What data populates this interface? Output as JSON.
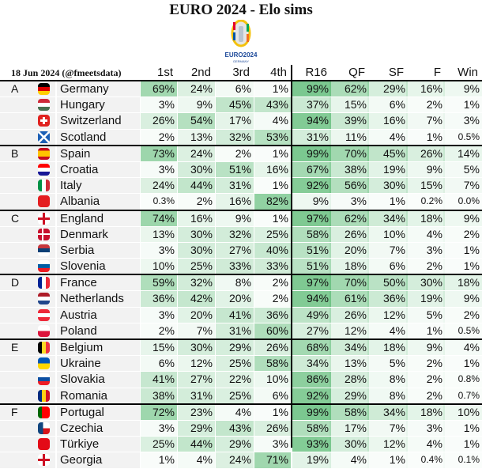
{
  "title": "EURO 2024 - Elo sims",
  "logo_text": "EURO2024",
  "logo_subtext": "GERMANY",
  "subtitle": "18 Jun 2024 (@fmeetsdata)",
  "columns": [
    "1st",
    "2nd",
    "3rd",
    "4th",
    "R16",
    "QF",
    "SF",
    "F",
    "Win"
  ],
  "colors": {
    "heat_max": "#63be7b",
    "name_bg": "#f2f2f2"
  },
  "groups": [
    {
      "letter": "A",
      "teams": [
        {
          "name": "Germany",
          "flag": [
            "#000",
            "#dd0000",
            "#ffce00"
          ],
          "dir": "h",
          "values": [
            "69%",
            "24%",
            "6%",
            "1%",
            "99%",
            "62%",
            "29%",
            "16%",
            "9%"
          ]
        },
        {
          "name": "Hungary",
          "flag": [
            "#ce2939",
            "#fff",
            "#477050"
          ],
          "dir": "h",
          "values": [
            "3%",
            "9%",
            "45%",
            "43%",
            "37%",
            "15%",
            "6%",
            "2%",
            "1%"
          ]
        },
        {
          "name": "Switzerland",
          "flag": [
            "#e0221f"
          ],
          "dir": "cross-white",
          "values": [
            "26%",
            "54%",
            "17%",
            "4%",
            "94%",
            "39%",
            "16%",
            "7%",
            "3%"
          ]
        },
        {
          "name": "Scotland",
          "flag": [
            "#1b5fb5"
          ],
          "dir": "saltire",
          "values": [
            "2%",
            "13%",
            "32%",
            "53%",
            "31%",
            "11%",
            "4%",
            "1%",
            "0.5%"
          ]
        }
      ]
    },
    {
      "letter": "B",
      "teams": [
        {
          "name": "Spain",
          "flag": [
            "#c60b1e",
            "#ffc400",
            "#ffc400",
            "#c60b1e"
          ],
          "dir": "h",
          "values": [
            "73%",
            "24%",
            "2%",
            "1%",
            "99%",
            "70%",
            "45%",
            "26%",
            "14%"
          ]
        },
        {
          "name": "Croatia",
          "flag": [
            "#ff0000",
            "#fff",
            "#171796"
          ],
          "dir": "h",
          "values": [
            "3%",
            "30%",
            "51%",
            "16%",
            "67%",
            "38%",
            "19%",
            "9%",
            "5%"
          ]
        },
        {
          "name": "Italy",
          "flag": [
            "#009246",
            "#fff",
            "#ce2b37"
          ],
          "dir": "v",
          "values": [
            "24%",
            "44%",
            "31%",
            "1%",
            "92%",
            "56%",
            "30%",
            "15%",
            "7%"
          ]
        },
        {
          "name": "Albania",
          "flag": [
            "#e41e20"
          ],
          "dir": "h",
          "values": [
            "0.3%",
            "2%",
            "16%",
            "82%",
            "9%",
            "3%",
            "1%",
            "0.2%",
            "0.0%"
          ]
        }
      ]
    },
    {
      "letter": "C",
      "teams": [
        {
          "name": "England",
          "flag": [
            "#fff"
          ],
          "dir": "cross-red",
          "values": [
            "74%",
            "16%",
            "9%",
            "1%",
            "97%",
            "62%",
            "34%",
            "18%",
            "9%"
          ]
        },
        {
          "name": "Denmark",
          "flag": [
            "#c8102e"
          ],
          "dir": "nordic",
          "values": [
            "13%",
            "30%",
            "32%",
            "25%",
            "58%",
            "26%",
            "10%",
            "4%",
            "2%"
          ]
        },
        {
          "name": "Serbia",
          "flag": [
            "#c6363c",
            "#0c4076",
            "#fff"
          ],
          "dir": "h",
          "values": [
            "3%",
            "30%",
            "27%",
            "40%",
            "51%",
            "20%",
            "7%",
            "3%",
            "1%"
          ]
        },
        {
          "name": "Slovenia",
          "flag": [
            "#fff",
            "#005da4",
            "#ed1c24"
          ],
          "dir": "h",
          "values": [
            "10%",
            "25%",
            "33%",
            "33%",
            "51%",
            "18%",
            "6%",
            "2%",
            "1%"
          ]
        }
      ]
    },
    {
      "letter": "D",
      "teams": [
        {
          "name": "France",
          "flag": [
            "#002395",
            "#fff",
            "#ed2939"
          ],
          "dir": "v",
          "values": [
            "59%",
            "32%",
            "8%",
            "2%",
            "97%",
            "70%",
            "50%",
            "30%",
            "18%"
          ]
        },
        {
          "name": "Netherlands",
          "flag": [
            "#ae1c28",
            "#fff",
            "#21468b"
          ],
          "dir": "h",
          "values": [
            "36%",
            "42%",
            "20%",
            "2%",
            "94%",
            "61%",
            "36%",
            "19%",
            "9%"
          ]
        },
        {
          "name": "Austria",
          "flag": [
            "#ed2939",
            "#fff",
            "#ed2939"
          ],
          "dir": "h",
          "values": [
            "3%",
            "20%",
            "41%",
            "36%",
            "49%",
            "26%",
            "12%",
            "5%",
            "2%"
          ]
        },
        {
          "name": "Poland",
          "flag": [
            "#fff",
            "#dc143c"
          ],
          "dir": "h",
          "values": [
            "2%",
            "7%",
            "31%",
            "60%",
            "27%",
            "12%",
            "4%",
            "1%",
            "0.5%"
          ]
        }
      ]
    },
    {
      "letter": "E",
      "teams": [
        {
          "name": "Belgium",
          "flag": [
            "#000",
            "#fdda24",
            "#ef3340"
          ],
          "dir": "v",
          "values": [
            "15%",
            "30%",
            "29%",
            "26%",
            "68%",
            "34%",
            "18%",
            "9%",
            "4%"
          ]
        },
        {
          "name": "Ukraine",
          "flag": [
            "#0057b7",
            "#ffd700"
          ],
          "dir": "h",
          "values": [
            "6%",
            "12%",
            "25%",
            "58%",
            "34%",
            "13%",
            "5%",
            "2%",
            "1%"
          ]
        },
        {
          "name": "Slovakia",
          "flag": [
            "#fff",
            "#0b4ea2",
            "#ee1c25"
          ],
          "dir": "h",
          "values": [
            "41%",
            "27%",
            "22%",
            "10%",
            "86%",
            "28%",
            "8%",
            "2%",
            "0.8%"
          ]
        },
        {
          "name": "Romania",
          "flag": [
            "#002b7f",
            "#fcd116",
            "#ce1126"
          ],
          "dir": "v",
          "values": [
            "38%",
            "31%",
            "25%",
            "6%",
            "92%",
            "29%",
            "8%",
            "2%",
            "0.7%"
          ]
        }
      ]
    },
    {
      "letter": "F",
      "teams": [
        {
          "name": "Portugal",
          "flag": [
            "#006600",
            "#ff0000",
            "#ff0000"
          ],
          "dir": "v",
          "values": [
            "72%",
            "23%",
            "4%",
            "1%",
            "99%",
            "58%",
            "34%",
            "18%",
            "10%"
          ]
        },
        {
          "name": "Czechia",
          "flag": [
            "#fff",
            "#d7141a"
          ],
          "dir": "czech",
          "values": [
            "3%",
            "29%",
            "43%",
            "26%",
            "58%",
            "17%",
            "7%",
            "3%",
            "1%"
          ]
        },
        {
          "name": "Türkiye",
          "flag": [
            "#e30a17"
          ],
          "dir": "h",
          "values": [
            "25%",
            "44%",
            "29%",
            "3%",
            "93%",
            "30%",
            "12%",
            "4%",
            "1%"
          ]
        },
        {
          "name": "Georgia",
          "flag": [
            "#fff"
          ],
          "dir": "cross-red",
          "values": [
            "1%",
            "4%",
            "24%",
            "71%",
            "19%",
            "4%",
            "1%",
            "0.4%",
            "0.1%"
          ]
        }
      ]
    }
  ]
}
